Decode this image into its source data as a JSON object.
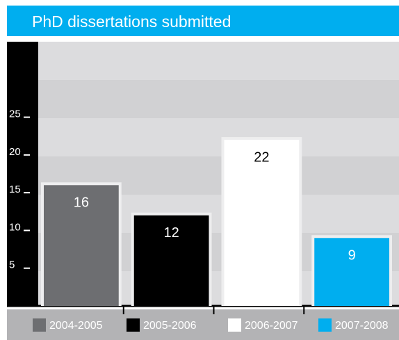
{
  "chart_data": {
    "type": "bar",
    "title": "PhD dissertations submitted",
    "categories": [
      "2004-2005",
      "2005-2006",
      "2006-2007",
      "2007-2008"
    ],
    "values": [
      16,
      12,
      22,
      9
    ],
    "colors": [
      "#6d6e71",
      "#000000",
      "#ffffff",
      "#00aeef"
    ],
    "ylim": [
      0,
      35
    ],
    "yticks": [
      5,
      10,
      15,
      20,
      25
    ],
    "grid": false,
    "legend": "bottom"
  }
}
